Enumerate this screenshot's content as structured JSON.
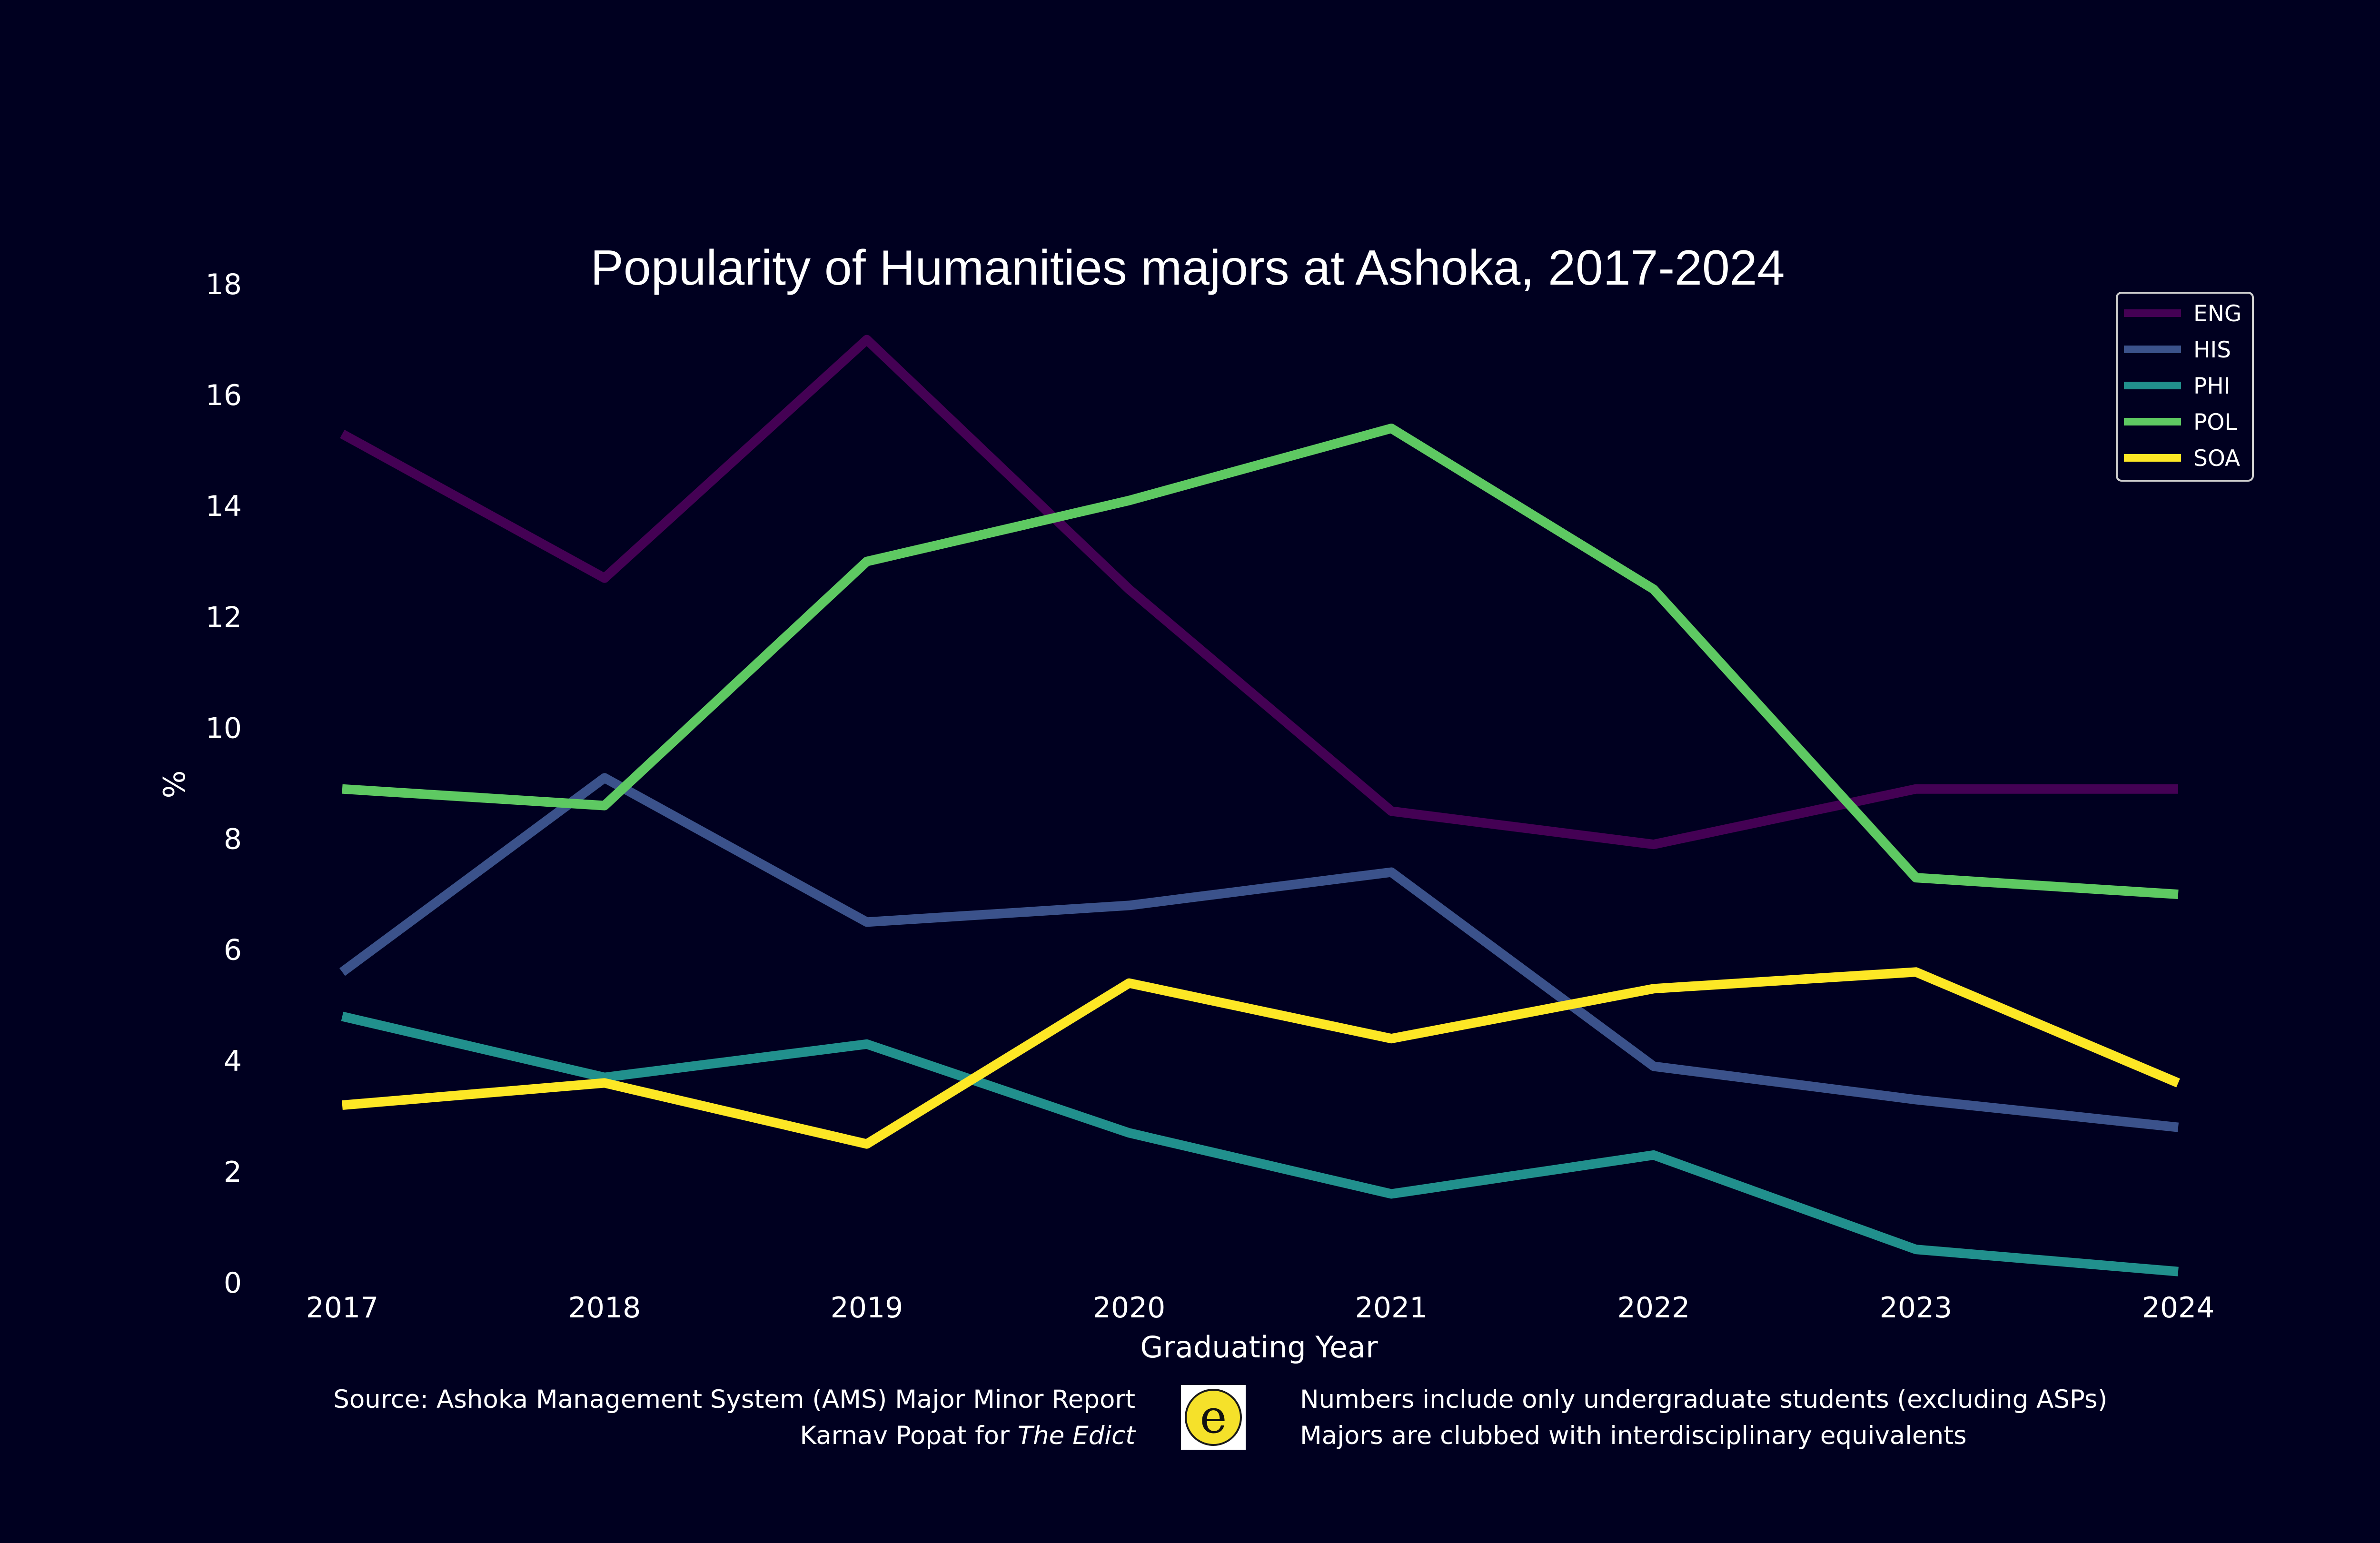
{
  "chart_data": {
    "type": "line",
    "title": "Popularity of Humanities majors at Ashoka, 2017-2024",
    "xlabel": "Graduating Year",
    "ylabel": "%",
    "x": [
      "2017",
      "2018",
      "2019",
      "2020",
      "2021",
      "2022",
      "2023",
      "2024"
    ],
    "yticks": [
      "0",
      "2",
      "4",
      "6",
      "8",
      "10",
      "12",
      "14",
      "16",
      "18"
    ],
    "ylim": [
      0,
      18
    ],
    "grid": false,
    "legend_position": "top-right",
    "series": [
      {
        "name": "ENG",
        "color": "#440154",
        "values": [
          15.3,
          12.7,
          17.0,
          12.5,
          8.5,
          7.9,
          8.9,
          8.9
        ]
      },
      {
        "name": "HIS",
        "color": "#3b528b",
        "values": [
          5.6,
          9.1,
          6.5,
          6.8,
          7.4,
          3.9,
          3.3,
          2.8
        ]
      },
      {
        "name": "PHI",
        "color": "#21908d",
        "values": [
          4.8,
          3.7,
          4.3,
          2.7,
          1.6,
          2.3,
          0.6,
          0.2
        ]
      },
      {
        "name": "POL",
        "color": "#5ec962",
        "values": [
          8.9,
          8.6,
          13.0,
          14.1,
          15.4,
          12.5,
          7.3,
          7.0
        ]
      },
      {
        "name": "SOA",
        "color": "#fde725",
        "values": [
          3.2,
          3.6,
          2.5,
          5.4,
          4.4,
          5.3,
          5.6,
          3.6
        ]
      }
    ]
  },
  "footer": {
    "source_line": "Source: Ashoka Management System (AMS) Major Minor Report",
    "author_prefix": "Karnav Popat for ",
    "author_publication": "The Edict",
    "note_1": "Numbers include only undergraduate students (excluding ASPs)",
    "note_2": "Majors are clubbed with interdisciplinary equivalents",
    "logo_letter": "e"
  },
  "colors": {
    "background": "#000020",
    "text": "#ffffff",
    "logo_yellow": "#f5e12a"
  }
}
